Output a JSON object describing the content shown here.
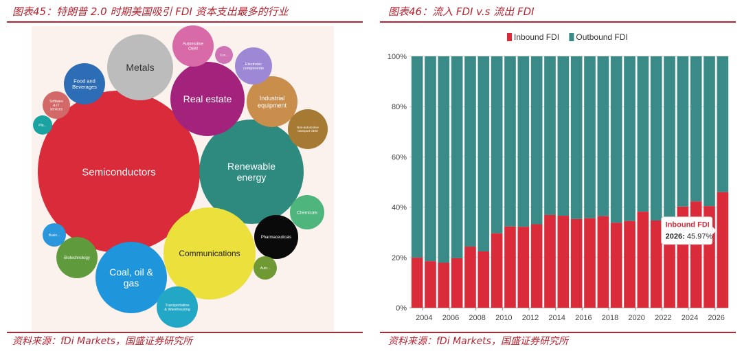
{
  "left_panel": {
    "title": "图表45：特朗普 2.0 时期美国吸引 FDI 资本支出最多的行业",
    "source": "资料来源：fDi Markets，国盛证券研究所"
  },
  "right_panel": {
    "title": "图表46：流入 FDI v.s 流出 FDI",
    "source": "资料来源：fDi Markets，国盛证券研究所"
  },
  "chart_data": [
    {
      "type": "bubble",
      "title": "",
      "bubbles": [
        {
          "name": "Semiconductors",
          "color": "#d92b3a"
        },
        {
          "name": "Renewable energy",
          "color": "#2e8a7f"
        },
        {
          "name": "Communications",
          "color": "#ece03c"
        },
        {
          "name": "Metals",
          "color": "#bcbcbc"
        },
        {
          "name": "Coal, oil & gas",
          "color": "#1f96dc"
        },
        {
          "name": "Real estate",
          "color": "#a3237c"
        },
        {
          "name": "Industrial equipment",
          "color": "#c98d4c"
        },
        {
          "name": "Food and Beverages",
          "color": "#2c6db5"
        },
        {
          "name": "Automotive OEM",
          "color": "#d96aa8"
        },
        {
          "name": "Electronic components",
          "color": "#9d88d6"
        },
        {
          "name": "Non-automotive transport OEM",
          "color": "#a67a32"
        },
        {
          "name": "Chemicals",
          "color": "#4eb67c"
        },
        {
          "name": "Pharmaceuticals",
          "color": "#0a0a0a"
        },
        {
          "name": "Biotechnology",
          "color": "#5f9a3c"
        },
        {
          "name": "Transportation & Warehousing",
          "color": "#22a7c6"
        },
        {
          "name": "Software & IT services",
          "color": "#d36868"
        },
        {
          "name": "Busin...",
          "color": "#2a97dc"
        },
        {
          "name": "Auto...",
          "color": "#6f9a33"
        },
        {
          "name": "Con...",
          "color": "#cf73b5"
        },
        {
          "name": "Pla...",
          "color": "#1aa3a0"
        }
      ]
    },
    {
      "type": "bar",
      "stacked": true,
      "title": "",
      "legend_position": "top-left",
      "series": [
        {
          "name": "Inbound FDI",
          "color": "#d92b3a",
          "values": [
            19.9,
            18.5,
            17.9,
            19.7,
            24.3,
            22.4,
            29.6,
            32.3,
            32.2,
            33.2,
            36.9,
            36.6,
            35.3,
            35.6,
            36.4,
            33.8,
            34.5,
            38.2,
            34.7,
            34.7,
            40.2,
            42.3,
            40.4,
            45.97
          ]
        },
        {
          "name": "Outbound FDI",
          "color": "#3a8b87",
          "values": [
            80.1,
            81.5,
            82.1,
            80.3,
            75.7,
            77.6,
            70.4,
            67.7,
            67.8,
            66.8,
            63.1,
            63.4,
            64.7,
            64.4,
            63.6,
            66.2,
            65.5,
            61.8,
            65.3,
            65.3,
            59.8,
            57.7,
            59.6,
            54.03
          ]
        }
      ],
      "x": [
        2003,
        2004,
        2005,
        2006,
        2007,
        2008,
        2009,
        2010,
        2011,
        2012,
        2013,
        2014,
        2015,
        2016,
        2017,
        2018,
        2019,
        2020,
        2021,
        2022,
        2023,
        2024,
        2025,
        2026
      ],
      "x_tick_labels": [
        "2004",
        "2006",
        "2008",
        "2010",
        "2012",
        "2014",
        "2016",
        "2018",
        "2020",
        "2022",
        "2024",
        "2026"
      ],
      "y_tick_labels": [
        "0%",
        "20%",
        "40%",
        "60%",
        "80%",
        "100%"
      ],
      "ylim": [
        0,
        100
      ],
      "tooltip": {
        "series": "Inbound FDI",
        "label": "2026:",
        "value": "45.97%"
      }
    }
  ]
}
